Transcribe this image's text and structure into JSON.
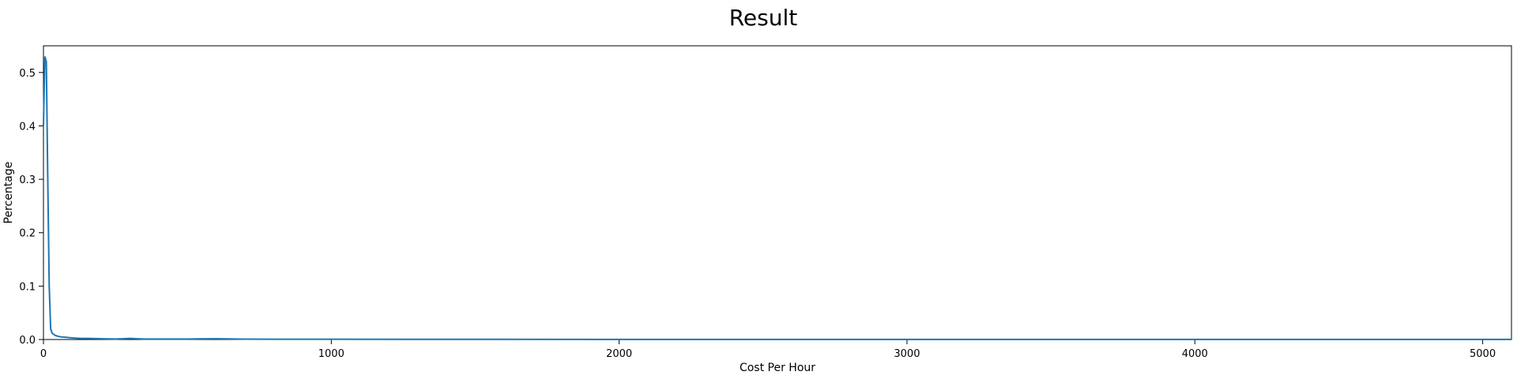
{
  "chart_data": {
    "type": "line",
    "title": "Result",
    "xlabel": "Cost Per Hour",
    "ylabel": "Percentage",
    "xlim": [
      0,
      5100
    ],
    "ylim": [
      0,
      0.55
    ],
    "xticks": [
      0,
      1000,
      2000,
      3000,
      4000,
      5000
    ],
    "yticks": [
      0.0,
      0.1,
      0.2,
      0.3,
      0.4,
      0.5
    ],
    "xtick_labels": [
      "0",
      "1000",
      "2000",
      "3000",
      "4000",
      "5000"
    ],
    "ytick_labels": [
      "0.0",
      "0.1",
      "0.2",
      "0.3",
      "0.4",
      "0.5"
    ],
    "grid": false,
    "series": [
      {
        "color": "#1f77b4",
        "x": [
          0,
          5,
          10,
          15,
          20,
          25,
          30,
          40,
          50,
          60,
          80,
          100,
          130,
          160,
          200,
          250,
          300,
          350,
          400,
          500,
          600,
          700,
          800,
          1000,
          1500,
          2000,
          2500,
          3000,
          3500,
          4000,
          4500,
          5000,
          5100
        ],
        "y": [
          0.4,
          0.53,
          0.52,
          0.3,
          0.1,
          0.02,
          0.012,
          0.008,
          0.006,
          0.005,
          0.004,
          0.003,
          0.002,
          0.002,
          0.0015,
          0.001,
          0.002,
          0.001,
          0.001,
          0.001,
          0.0015,
          0.0008,
          0.0006,
          0.0005,
          0.0003,
          0.0002,
          0.0002,
          0.0001,
          0.0001,
          0.0001,
          0.0001,
          0.0001,
          0.0001
        ]
      }
    ]
  }
}
